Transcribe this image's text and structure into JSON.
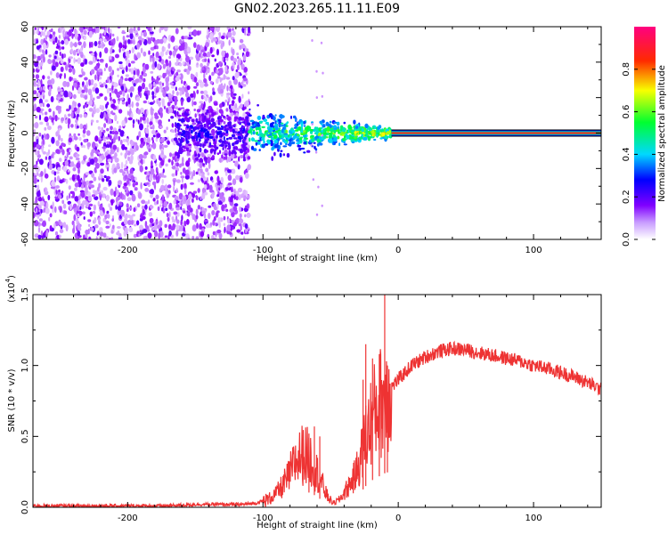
{
  "title": "GN02.2023.265.11.11.E09",
  "colors": {
    "ridge": "#ff1a1a",
    "snr_line": "#ee3333",
    "speckle": "#7a00ff",
    "background": "#ffffff"
  },
  "chart_data": [
    {
      "type": "heatmap",
      "title": "GN02.2023.265.11.11.E09",
      "xlabel": "Height of straight line (km)",
      "ylabel": "Frequency (Hz)",
      "xlim": [
        -270,
        150
      ],
      "ylim": [
        -60,
        60
      ],
      "xticks": [
        -200,
        -100,
        0,
        100
      ],
      "xtick_labels": [
        "-200",
        "-100",
        "0",
        "100"
      ],
      "yticks": [
        -60,
        -40,
        -20,
        0,
        20,
        40,
        60
      ],
      "ytick_labels": [
        "-60",
        "-40",
        "-20",
        "0",
        "20",
        "40",
        "60"
      ],
      "colorbar": {
        "label": "Normalized spectral amplitude",
        "range": [
          0,
          1
        ],
        "ticks": [
          0.0,
          0.2,
          0.4,
          0.6,
          0.8
        ],
        "tick_labels": [
          "0.0",
          "0.2",
          "0.4",
          "0.6",
          "0.8"
        ],
        "colormap": [
          "#ffffff",
          "#8a00ff",
          "#0000ff",
          "#00d8ff",
          "#00ff30",
          "#f8ff00",
          "#ff2a00",
          "#ff0080"
        ]
      },
      "features": {
        "noise_region_x": [
          -270,
          -110
        ],
        "transition_x": [
          -110,
          -5
        ],
        "ridge_x": [
          -5,
          150
        ],
        "ridge_frequency": 0,
        "ridge_amplitude": 0.9
      }
    },
    {
      "type": "line",
      "xlabel": "Height of straight line (km)",
      "ylabel": "SNR (10 * v/v)",
      "y_scale_label": "(x10",
      "y_scale_exponent": "4",
      "xlim": [
        -270,
        150
      ],
      "ylim": [
        0,
        1.5
      ],
      "xticks": [
        -200,
        -100,
        0,
        100
      ],
      "xtick_labels": [
        "-200",
        "-100",
        "0",
        "100"
      ],
      "yticks": [
        0.0,
        0.5,
        1.0,
        1.5
      ],
      "ytick_labels": [
        "0.0",
        "0.5",
        "1.0",
        "1.5"
      ],
      "series": [
        {
          "x": [
            -270,
            -250,
            -230,
            -210,
            -190,
            -170,
            -150,
            -130,
            -115,
            -105,
            -95,
            -88,
            -82,
            -76,
            -70,
            -64,
            -58,
            -52,
            -48,
            -44,
            -40,
            -36,
            -32,
            -28,
            -24,
            -20,
            -16,
            -12,
            -10,
            -8,
            -4,
            0,
            10,
            20,
            30,
            40,
            50,
            60,
            70,
            80,
            90,
            100,
            110,
            120,
            130,
            140,
            150
          ],
          "y": [
            0.01,
            0.01,
            0.01,
            0.01,
            0.01,
            0.01,
            0.02,
            0.02,
            0.02,
            0.03,
            0.06,
            0.12,
            0.2,
            0.32,
            0.38,
            0.33,
            0.2,
            0.07,
            0.03,
            0.05,
            0.1,
            0.16,
            0.22,
            0.34,
            0.5,
            0.62,
            0.7,
            0.76,
            0.8,
            0.82,
            0.86,
            0.9,
            1.0,
            1.06,
            1.1,
            1.12,
            1.11,
            1.09,
            1.07,
            1.05,
            1.03,
            1.0,
            0.98,
            0.95,
            0.92,
            0.88,
            0.83
          ]
        }
      ],
      "spikes": [
        {
          "x": -10,
          "y": 1.5
        },
        {
          "x": -24,
          "y": 1.15
        },
        {
          "x": -19,
          "y": 1.05
        },
        {
          "x": -14,
          "y": 1.08
        },
        {
          "x": -8,
          "y": 1.0
        },
        {
          "x": -26,
          "y": 0.9
        },
        {
          "x": -62,
          "y": 0.57
        },
        {
          "x": -66,
          "y": 0.52
        },
        {
          "x": -58,
          "y": 0.5
        }
      ]
    }
  ]
}
